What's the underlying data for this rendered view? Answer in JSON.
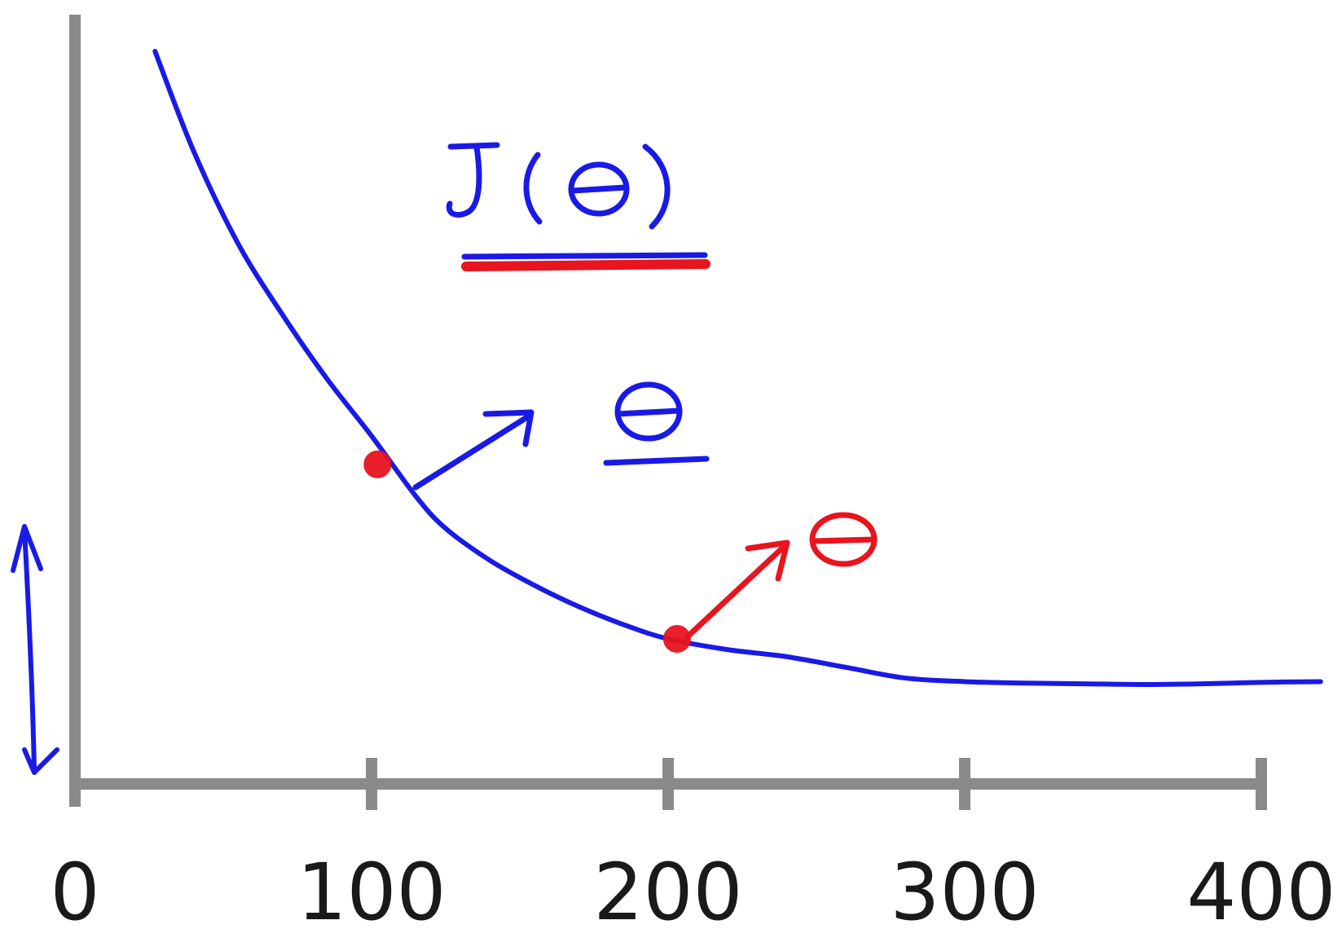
{
  "chart_data": {
    "type": "line",
    "title": "",
    "xlabel": "",
    "ylabel": "",
    "xlim": [
      0,
      420
    ],
    "ylim": [
      0,
      10
    ],
    "x_ticks": [
      "0",
      "100",
      "200",
      "300",
      "400"
    ],
    "x_tick_values": [
      0,
      100,
      200,
      300,
      400
    ],
    "grid": false,
    "series": [
      {
        "color": "#1a1ae6",
        "x": [
          27,
          40,
          55,
          70,
          85,
          100,
          115,
          125,
          140,
          155,
          170,
          185,
          200,
          220,
          240,
          260,
          280,
          300,
          320,
          340,
          360,
          380,
          400,
          420
        ],
        "y": [
          9.6,
          8.2,
          6.9,
          5.9,
          5.0,
          4.2,
          3.35,
          2.9,
          2.45,
          2.1,
          1.8,
          1.55,
          1.35,
          1.2,
          1.1,
          0.95,
          0.8,
          0.75,
          0.73,
          0.72,
          0.71,
          0.72,
          0.74,
          0.75
        ]
      }
    ],
    "highlighted_points": [
      {
        "x": 102,
        "y": 3.8,
        "color": "#e8141e"
      },
      {
        "x": 203,
        "y": 1.35,
        "color": "#e8141e"
      }
    ]
  }
}
